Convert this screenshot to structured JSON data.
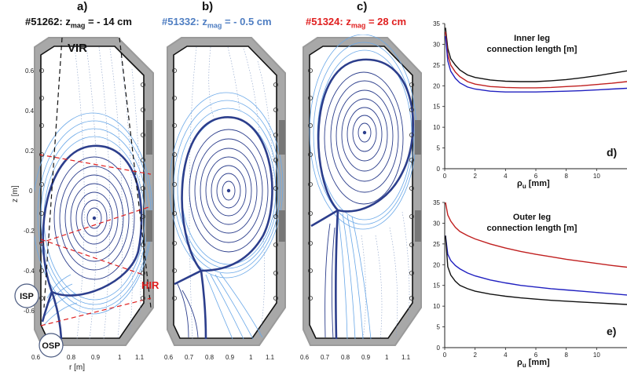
{
  "panels": {
    "a": {
      "label": "a)",
      "title_shot": "#51262: z",
      "title_sub": "mag",
      "title_val": " = -  14 cm",
      "color": "#111111",
      "o_point": [
        0.88,
        -0.13
      ]
    },
    "b": {
      "label": "b)",
      "title_shot": "#51332: z",
      "title_sub": "mag",
      "title_val": " = - 0.5 cm",
      "color": "#4f7ec2",
      "o_point": [
        0.89,
        0.0
      ]
    },
    "c": {
      "label": "c)",
      "title_shot": "#51324: z",
      "title_sub": "mag",
      "title_val": " =   28 cm",
      "color": "#e02020",
      "o_point": [
        0.9,
        0.29
      ]
    },
    "d": {
      "label": "d)"
    },
    "e": {
      "label": "e)"
    }
  },
  "annotations": {
    "vir": "VIR",
    "hir": "HIR",
    "isp": "ISP",
    "osp": "OSP"
  },
  "equilibrium_axes": {
    "r_ticks_a": [
      "0.6",
      "0.8",
      "0.9",
      "1",
      "1.1"
    ],
    "r_ticks_bc": [
      "0.6",
      "0.7",
      "0.8",
      "0.9",
      "1",
      "1.1"
    ],
    "z_ticks": [
      "0.6",
      "0.4",
      "0.2",
      "0",
      "-0.2",
      "-0.4",
      "-0.6"
    ],
    "xlabel": "r [m]",
    "ylabel": "z [m]"
  },
  "chart_data": [
    {
      "type": "line",
      "panel": "d",
      "title": "Inner leg connection length [m]",
      "title_lines": [
        "Inner leg",
        "connection length [m]"
      ],
      "xlabel": "ρu [mm]",
      "xlabel_main": "ρ",
      "xlabel_sub": "u",
      "xlabel_unit": " [mm]",
      "xlim": [
        0,
        12
      ],
      "ylim": [
        0,
        35
      ],
      "xticks": [
        "0",
        "2",
        "4",
        "6",
        "8",
        "10"
      ],
      "yticks": [
        "0",
        "5",
        "10",
        "15",
        "20",
        "25",
        "30",
        "35"
      ],
      "x": [
        0.05,
        0.2,
        0.4,
        0.7,
        1,
        1.5,
        2,
        3,
        4,
        5,
        6,
        7,
        8,
        9,
        10,
        11,
        12
      ],
      "series": [
        {
          "color": "#111111",
          "values": [
            34,
            29,
            26.5,
            25,
            23.8,
            22.6,
            22,
            21.4,
            21.1,
            21,
            21,
            21.2,
            21.5,
            21.9,
            22.4,
            23,
            23.6
          ]
        },
        {
          "color": "#c02020",
          "values": [
            33,
            27.5,
            25,
            23.3,
            22.2,
            21,
            20.4,
            19.8,
            19.6,
            19.5,
            19.5,
            19.6,
            19.8,
            20.0,
            20.3,
            20.6,
            21.0
          ]
        },
        {
          "color": "#2020c0",
          "values": [
            32,
            26,
            23.5,
            21.8,
            20.7,
            19.7,
            19.2,
            18.7,
            18.5,
            18.5,
            18.5,
            18.6,
            18.7,
            18.8,
            19.0,
            19.2,
            19.4
          ]
        }
      ]
    },
    {
      "type": "line",
      "panel": "e",
      "title": "Outer leg connection length [m]",
      "title_lines": [
        "Outer leg",
        "connection length [m]"
      ],
      "xlabel": "ρu [mm]",
      "xlabel_main": "ρ",
      "xlabel_sub": "u",
      "xlabel_unit": " [mm]",
      "xlim": [
        0,
        12
      ],
      "ylim": [
        0,
        35
      ],
      "xticks": [
        "0",
        "2",
        "4",
        "6",
        "8",
        "10"
      ],
      "yticks": [
        "0",
        "5",
        "10",
        "15",
        "20",
        "25",
        "30",
        "35"
      ],
      "x": [
        0.05,
        0.2,
        0.4,
        0.7,
        1,
        1.5,
        2,
        3,
        4,
        5,
        6,
        7,
        8,
        9,
        10,
        11,
        12
      ],
      "series": [
        {
          "color": "#c02020",
          "values": [
            35,
            32,
            30.5,
            29,
            28,
            27,
            26.2,
            25,
            24,
            23.2,
            22.5,
            21.9,
            21.3,
            20.8,
            20.3,
            19.8,
            19.4
          ]
        },
        {
          "color": "#2020c0",
          "values": [
            27,
            22.5,
            21,
            19.8,
            19,
            18,
            17.3,
            16.3,
            15.6,
            15,
            14.6,
            14.2,
            13.9,
            13.6,
            13.3,
            13.0,
            12.7
          ]
        },
        {
          "color": "#111111",
          "values": [
            27,
            19.5,
            17.5,
            16,
            15,
            14.2,
            13.6,
            12.9,
            12.4,
            12,
            11.7,
            11.4,
            11.2,
            11.0,
            10.8,
            10.6,
            10.4
          ]
        }
      ]
    }
  ]
}
